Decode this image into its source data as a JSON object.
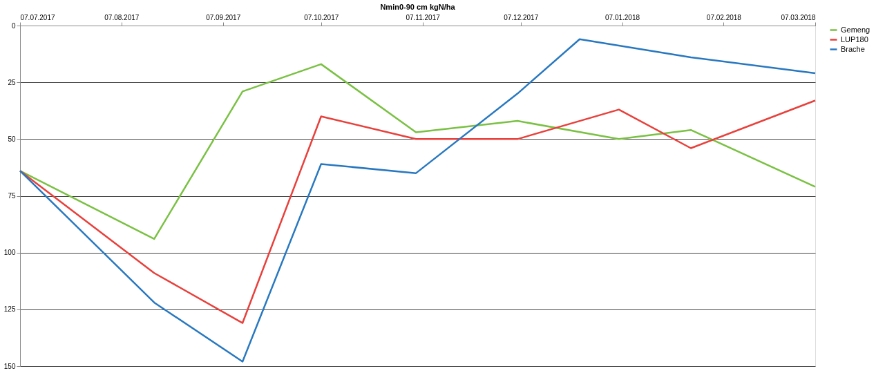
{
  "chart_data": {
    "type": "line",
    "title": "Nmin0-90 cm kgN/ha",
    "xlim": [
      "2017-07-07",
      "2018-03-07"
    ],
    "xticks": [
      {
        "value": "2017-07-07",
        "label": "07.07.2017"
      },
      {
        "value": "2017-08-07",
        "label": "07.08.2017"
      },
      {
        "value": "2017-09-07",
        "label": "07.09.2017"
      },
      {
        "value": "2017-10-07",
        "label": "07.10.2017"
      },
      {
        "value": "2017-11-07",
        "label": "07.11.2017"
      },
      {
        "value": "2017-12-07",
        "label": "07.12.2017"
      },
      {
        "value": "2018-01-07",
        "label": "07.01.2018"
      },
      {
        "value": "2018-02-07",
        "label": "07.02.2018"
      },
      {
        "value": "2018-03-07",
        "label": "07.03.2018"
      }
    ],
    "ylim": [
      150,
      0
    ],
    "yticks": [
      0,
      25,
      50,
      75,
      100,
      125,
      150
    ],
    "grid": "y",
    "legend": "right",
    "marker": "none",
    "line_style": "solid",
    "series": [
      {
        "name": "Gemeng",
        "color": "#7ac143",
        "x": [
          "2017-07-07",
          "2017-08-17",
          "2017-09-13",
          "2017-10-07",
          "2017-11-05",
          "2017-12-06",
          "2018-01-06",
          "2018-01-28",
          "2018-03-07"
        ],
        "values": [
          64,
          94,
          29,
          17,
          47,
          42,
          50,
          46,
          71
        ]
      },
      {
        "name": "LUP180",
        "color": "#e8403b",
        "x": [
          "2017-07-07",
          "2017-08-17",
          "2017-09-13",
          "2017-10-07",
          "2017-11-05",
          "2017-12-06",
          "2018-01-06",
          "2018-01-28",
          "2018-03-07"
        ],
        "values": [
          64,
          109,
          131,
          40,
          50,
          50,
          37,
          54,
          33
        ]
      },
      {
        "name": "Brache",
        "color": "#2878c0",
        "x": [
          "2017-07-07",
          "2017-08-17",
          "2017-09-13",
          "2017-10-07",
          "2017-11-05",
          "2017-12-06",
          "2017-12-25",
          "2018-01-28",
          "2018-03-07"
        ],
        "values": [
          64,
          122,
          148,
          61,
          65,
          30,
          6,
          14,
          21
        ]
      }
    ]
  }
}
